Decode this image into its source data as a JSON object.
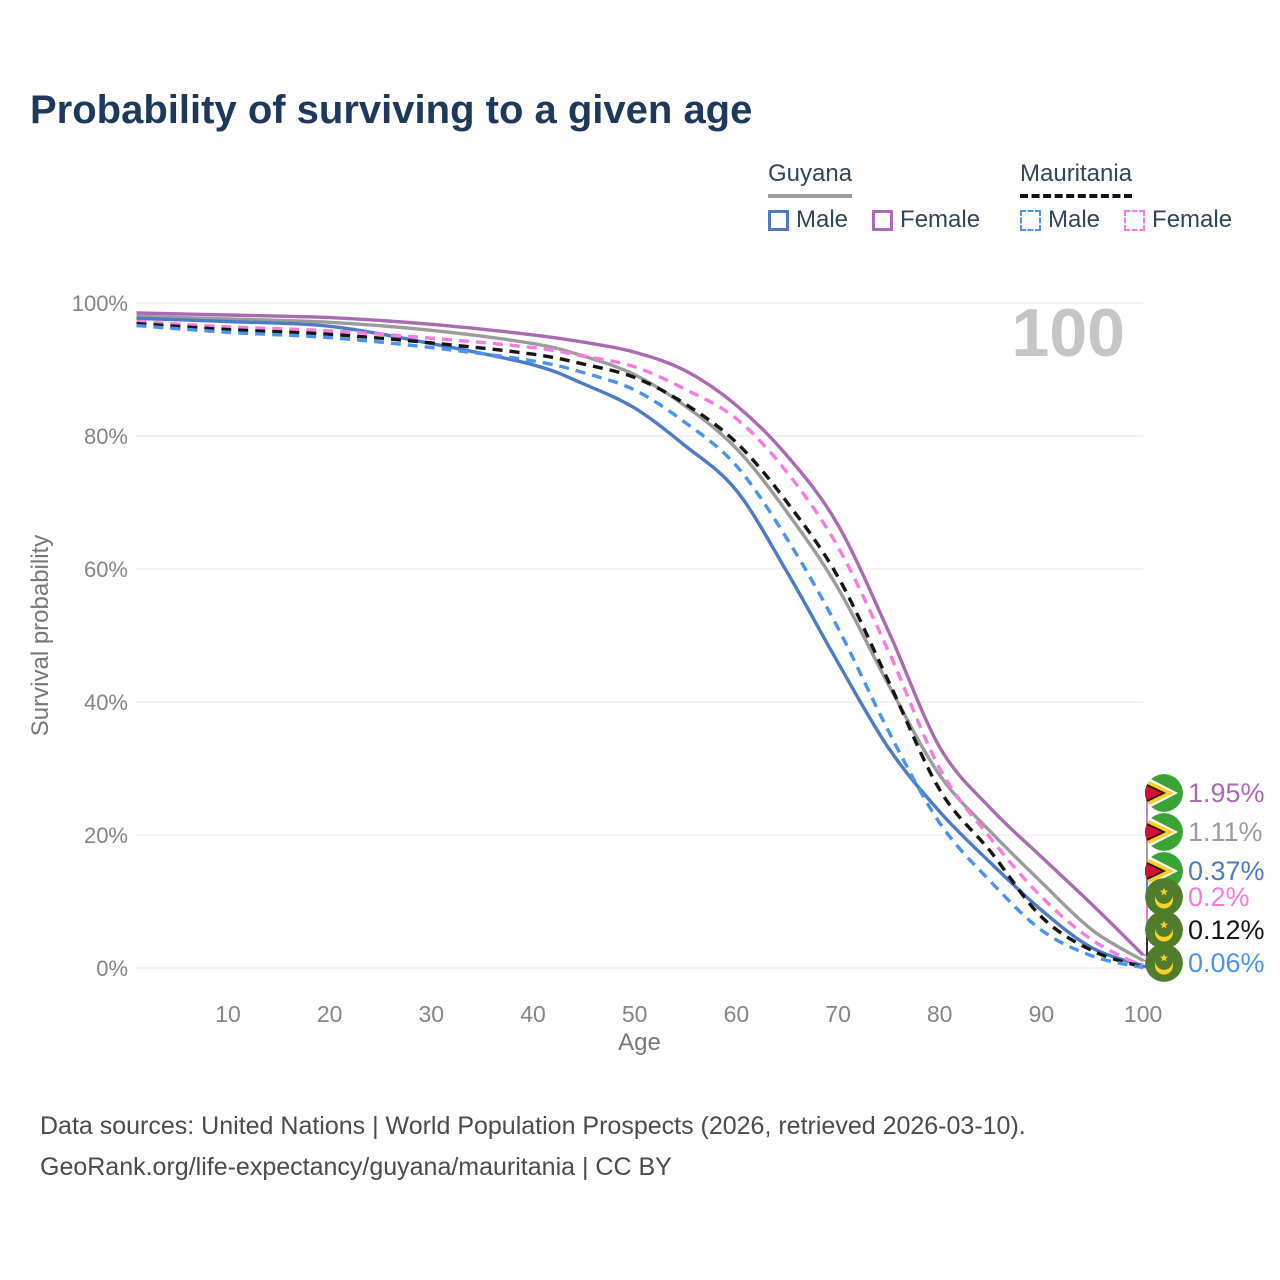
{
  "title": "Probability of surviving to a given age",
  "watermark": "100",
  "legend": {
    "groups": [
      {
        "country": "Guyana",
        "line_style": "solid",
        "underline_color": "#9e9e9e",
        "items": [
          {
            "label": "Male",
            "color": "#4d7bc4",
            "dashed": false
          },
          {
            "label": "Female",
            "color": "#aa6bb3",
            "dashed": false
          }
        ]
      },
      {
        "country": "Mauritania",
        "line_style": "dashed",
        "underline_color": "#141414",
        "items": [
          {
            "label": "Male",
            "color": "#4b93f0",
            "dashed": true
          },
          {
            "label": "Female",
            "color": "#fb7ade",
            "dashed": true
          }
        ]
      }
    ]
  },
  "chart_data": {
    "type": "line",
    "title": "Probability of surviving to a given age",
    "xlabel": "Age",
    "ylabel": "Survival probability",
    "xlim": [
      1,
      100
    ],
    "ylim": [
      0,
      100
    ],
    "grid": "horizontal",
    "legend_position": "top-right",
    "x_ticks": [
      {
        "value": 10,
        "label": "10"
      },
      {
        "value": 20,
        "label": "20"
      },
      {
        "value": 30,
        "label": "30"
      },
      {
        "value": 40,
        "label": "40"
      },
      {
        "value": 50,
        "label": "50"
      },
      {
        "value": 60,
        "label": "60"
      },
      {
        "value": 70,
        "label": "70"
      },
      {
        "value": 80,
        "label": "80"
      },
      {
        "value": 90,
        "label": "90"
      },
      {
        "value": 100,
        "label": "100"
      }
    ],
    "y_ticks": [
      {
        "value": 0,
        "label": "0%"
      },
      {
        "value": 20,
        "label": "20%"
      },
      {
        "value": 40,
        "label": "40%"
      },
      {
        "value": 60,
        "label": "60%"
      },
      {
        "value": 80,
        "label": "80%"
      },
      {
        "value": 100,
        "label": "100%"
      }
    ],
    "x": [
      1,
      10,
      20,
      30,
      40,
      45,
      50,
      55,
      60,
      65,
      70,
      75,
      80,
      85,
      90,
      95,
      100
    ],
    "series": [
      {
        "name": "Guyana — Female",
        "country": "Guyana",
        "sex": "Female",
        "flag": "guyana",
        "color": "#aa6bb3",
        "dashed": false,
        "end_label": "1.95%",
        "values": [
          98.5,
          98.2,
          97.8,
          96.8,
          95.2,
          94.1,
          92.6,
          89.8,
          84.6,
          77.0,
          66.6,
          50.5,
          33.2,
          24.0,
          16.7,
          9.5,
          1.95
        ]
      },
      {
        "name": "Guyana — Both sexes",
        "country": "Guyana",
        "sex": "Both",
        "flag": "guyana",
        "color": "#9c9c9c",
        "dashed": false,
        "end_label": "1.11%",
        "values": [
          98.0,
          97.6,
          97.1,
          95.9,
          93.9,
          92.0,
          89.2,
          84.5,
          78.1,
          68.5,
          57.1,
          42.5,
          29.0,
          20.5,
          12.9,
          5.7,
          1.11
        ]
      },
      {
        "name": "Guyana — Male",
        "country": "Guyana",
        "sex": "Male",
        "flag": "guyana",
        "color": "#4d7bc4",
        "dashed": false,
        "end_label": "0.37%",
        "values": [
          97.7,
          97.2,
          96.5,
          93.9,
          90.7,
          87.8,
          84.2,
          78.5,
          71.8,
          59.5,
          45.9,
          33.0,
          23.5,
          15.8,
          8.7,
          3.0,
          0.37
        ]
      },
      {
        "name": "Mauritania — Female",
        "country": "Mauritania",
        "sex": "Female",
        "flag": "mauritania",
        "color": "#fb7ade",
        "dashed": true,
        "end_label": "0.2%",
        "values": [
          97.2,
          96.4,
          95.8,
          94.7,
          93.3,
          92.0,
          90.4,
          87.0,
          82.6,
          74.5,
          63.3,
          47.5,
          30.0,
          19.5,
          10.7,
          4.2,
          0.2
        ]
      },
      {
        "name": "Mauritania — Both sexes",
        "country": "Mauritania",
        "sex": "Both",
        "flag": "mauritania",
        "color": "#151515",
        "dashed": true,
        "end_label": "0.12%",
        "values": [
          96.9,
          96.0,
          95.3,
          94.0,
          92.3,
          90.8,
          88.8,
          84.8,
          79.0,
          70.0,
          58.8,
          43.0,
          26.8,
          17.5,
          7.7,
          2.6,
          0.12
        ]
      },
      {
        "name": "Mauritania — Male",
        "country": "Mauritania",
        "sex": "Male",
        "flag": "mauritania",
        "color": "#4b93f0",
        "dashed": true,
        "end_label": "0.06%",
        "values": [
          96.6,
          95.6,
          94.8,
          93.3,
          91.3,
          89.5,
          86.9,
          82.0,
          75.5,
          64.5,
          51.1,
          35.5,
          21.8,
          13.0,
          5.7,
          1.8,
          0.06
        ]
      }
    ],
    "flag_colors": {
      "guyana": {
        "green": "#3aa335",
        "white": "#ffffff",
        "yellow": "#f8d01f",
        "black": "#1a1a1a",
        "red": "#d21034"
      },
      "mauritania": {
        "green": "#4f7d2c",
        "yellow": "#ffd21f"
      }
    }
  },
  "footer": {
    "line1": "Data sources: United Nations | World Population Prospects (2026, retrieved 2026-03-10).",
    "line2": "GeoRank.org/life-expectancy/guyana/mauritania | CC BY"
  }
}
